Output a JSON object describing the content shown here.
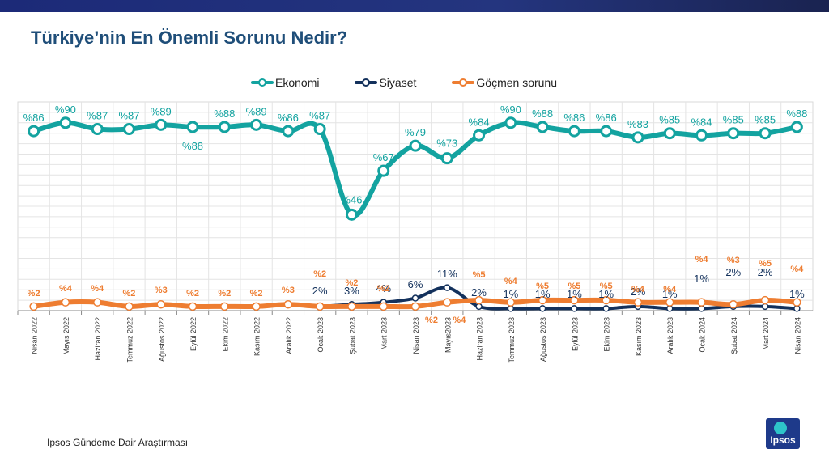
{
  "title": "Türkiye’nin En Önemli Sorunu Nedir?",
  "footer": "Ipsos Gündeme Dair Araştırması",
  "logo": {
    "text": "Ipsos"
  },
  "colors": {
    "ekonomi": "#13a3a0",
    "siyaset": "#13315c",
    "gocmen": "#ee7d31",
    "title": "#1f4e79"
  },
  "chart_data": {
    "type": "line",
    "title": "Türkiye’nin En Önemli Sorunu Nedir?",
    "legend_position": "top",
    "grid": true,
    "categories": [
      "Nisan 2022",
      "Mayıs 2022",
      "Haziran 2022",
      "Temmuz 2022",
      "Ağustos 2022",
      "Eylül 2022",
      "Ekim 2022",
      "Kasım 2022",
      "Aralık 2022",
      "Ocak 2023",
      "Şubat 2023",
      "Mart 2023",
      "Nisan 2023",
      "Mayıs2023",
      "Haziran 2023",
      "Temmuz 2023",
      "Ağustos 2023",
      "Eylül 2023",
      "Ekim 2023",
      "Kasım 2023",
      "Aralık 2023",
      "Ocak 2024",
      "Şubat 2024",
      "Mart 2024",
      "Nisan 2024"
    ],
    "series": [
      {
        "name": "Ekonomi",
        "values": [
          86,
          90,
          87,
          87,
          89,
          88,
          88,
          89,
          86,
          87,
          46,
          67,
          79,
          73,
          84,
          90,
          88,
          86,
          86,
          83,
          85,
          84,
          85,
          85,
          88
        ],
        "labels": [
          "%86",
          "%90",
          "%87",
          "%87",
          "%89",
          "%88",
          "%88",
          "%89",
          "%86",
          "%87",
          "%46",
          "%67",
          "%79",
          "%73",
          "%84",
          "%90",
          "%88",
          "%86",
          "%86",
          "%83",
          "%85",
          "%84",
          "%85",
          "%85",
          "%88"
        ]
      },
      {
        "name": "Siyaset",
        "values": [
          null,
          null,
          null,
          null,
          null,
          null,
          null,
          null,
          null,
          2,
          3,
          4,
          6,
          11,
          2,
          1,
          1,
          1,
          1,
          2,
          1,
          1,
          2,
          2,
          1
        ],
        "labels": [
          "",
          "",
          "",
          "",
          "",
          "",
          "",
          "",
          "",
          "2%",
          "3%",
          "4%",
          "6%",
          "11%",
          "2%",
          "1%",
          "1%",
          "1%",
          "1%",
          "2%",
          "1%",
          "1%",
          "2%",
          "2%",
          "1%"
        ]
      },
      {
        "name": "Göçmen sorunu",
        "values": [
          2,
          4,
          4,
          2,
          3,
          2,
          2,
          2,
          3,
          2,
          2,
          2,
          2,
          4,
          5,
          4,
          5,
          5,
          5,
          4,
          4,
          4,
          3,
          5,
          4
        ],
        "labels": [
          "%2",
          "%4",
          "%4",
          "%2",
          "%3",
          "%2",
          "%2",
          "%2",
          "%3",
          "%2",
          "%2",
          "%2",
          "%2",
          "%4",
          "%5",
          "%4",
          "%5",
          "%5",
          "%5",
          "%4",
          "%4",
          "%4",
          "%3",
          "%5",
          "%4"
        ]
      }
    ],
    "ylim": [
      0,
      100
    ]
  }
}
